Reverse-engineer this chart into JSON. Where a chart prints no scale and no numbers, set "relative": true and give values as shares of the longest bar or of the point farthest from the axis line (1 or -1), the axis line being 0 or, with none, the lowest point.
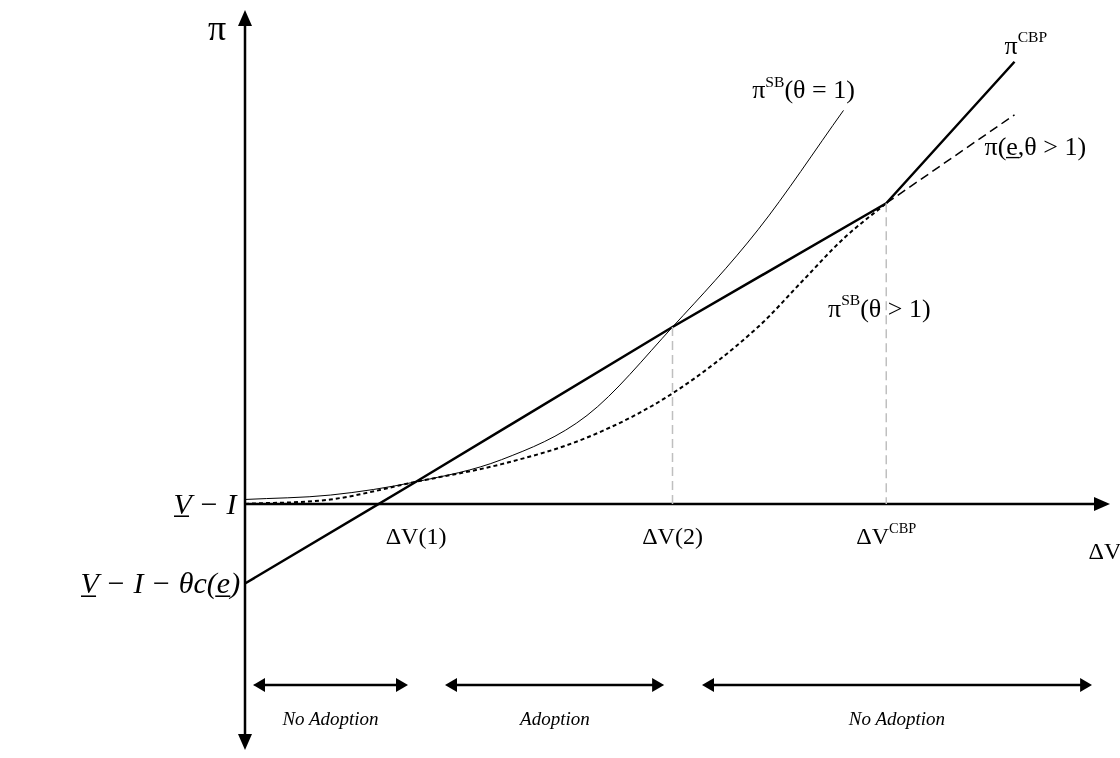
{
  "chart_data": {
    "type": "line",
    "relative": true,
    "legend": false,
    "ylabel": "π",
    "xlabel": "ΔV",
    "categories": [
      null,
      null,
      null,
      null,
      "ΔV(1)",
      null,
      null,
      null,
      null,
      null,
      "ΔV(2)",
      null,
      null,
      null,
      null,
      "ΔV$^{CBP}$",
      null,
      null,
      null,
      null,
      null
    ],
    "series": [
      {
        "name": "π$^{CBP}$",
        "color": "#000000",
        "line_style": "solid",
        "values": [
          -0.18,
          null,
          null,
          null,
          0.05,
          null,
          null,
          null,
          null,
          null,
          0.4,
          null,
          null,
          null,
          null,
          0.68,
          null,
          null,
          1,
          null,
          null
        ]
      },
      {
        "name": "π$^{SB}$(θ = 1)",
        "color": "#000000",
        "line_style": "solid",
        "values": [
          0.01,
          null,
          0.02,
          null,
          0.05,
          null,
          0.1,
          null,
          0.2,
          null,
          0.4,
          null,
          0.62,
          null,
          0.89,
          null,
          null,
          null,
          null,
          null,
          null
        ]
      },
      {
        "name": "π(e̲,θ > 1)",
        "color": "#000000",
        "line_style": "dashed",
        "values": [
          null,
          null,
          null,
          null,
          null,
          null,
          null,
          null,
          null,
          null,
          null,
          null,
          null,
          null,
          null,
          0.68,
          null,
          null,
          0.88,
          null,
          null
        ]
      },
      {
        "name": "π$^{SB}$(θ > 1)",
        "color": "#000000",
        "line_style": "dotted",
        "values": [
          0,
          null,
          0.01,
          null,
          0.05,
          null,
          0.09,
          null,
          0.15,
          null,
          0.25,
          null,
          0.4,
          0.5,
          0.6,
          0.68,
          null,
          null,
          null,
          null,
          null
        ]
      }
    ],
    "ref_lines": [
      {
        "axis": "x",
        "value": "ΔV(2)",
        "color": "#bfbfbf",
        "line_style": "dashed"
      },
      {
        "axis": "x",
        "value": "ΔV$^{CBP}$",
        "color": "#bfbfbf",
        "line_style": "dashed"
      }
    ],
    "annotations": [
      "V̲ − I",
      "V̲ − I − θc(e̲)",
      "No Adoption",
      "Adoption",
      "No Adoption"
    ]
  }
}
